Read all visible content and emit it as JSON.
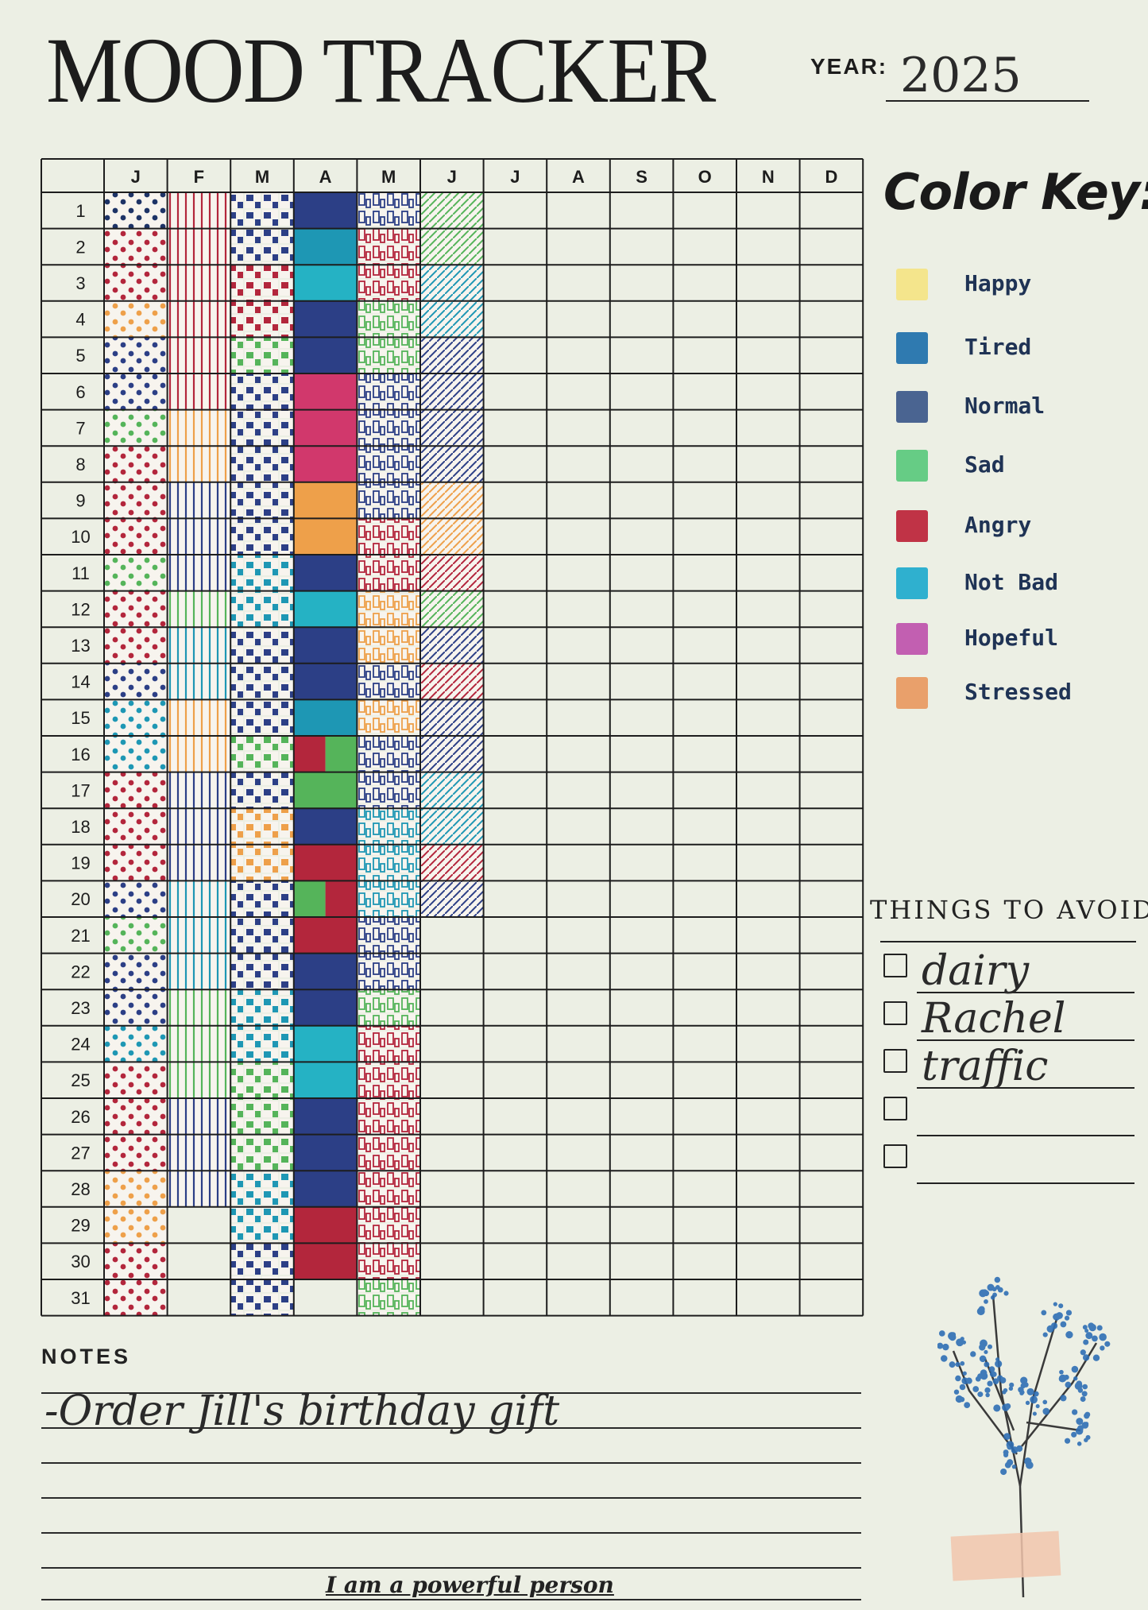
{
  "header": {
    "title": "MOOD TRACKER",
    "year_label": "YEAR:",
    "year_value": "2025"
  },
  "tracker": {
    "months": [
      "J",
      "F",
      "M",
      "A",
      "M",
      "J",
      "J",
      "A",
      "S",
      "O",
      "N",
      "D"
    ],
    "days": [
      "1",
      "2",
      "3",
      "4",
      "5",
      "6",
      "7",
      "8",
      "9",
      "10",
      "11",
      "12",
      "13",
      "14",
      "15",
      "16",
      "17",
      "18",
      "19",
      "20",
      "21",
      "22",
      "23",
      "24",
      "25",
      "26",
      "27",
      "28",
      "29",
      "30",
      "31"
    ],
    "patterns": [
      "dots",
      "vertical-lines",
      "squares",
      "solid",
      "rectangles",
      "diagonal-lines"
    ],
    "filled": [
      [
        "happy_or_misc:navy",
        "angry",
        "normal",
        "normal",
        "normal",
        "sad"
      ],
      [
        "angry",
        "angry",
        "normal",
        "tired",
        "angry",
        "sad"
      ],
      [
        "angry",
        "angry",
        "angry",
        "notbad",
        "angry",
        "tired"
      ],
      [
        "stressed",
        "angry",
        "angry",
        "normal",
        "sad",
        "tired"
      ],
      [
        "normal",
        "angry",
        "sad",
        "normal",
        "sad",
        "normal"
      ],
      [
        "normal",
        "angry",
        "normal",
        "hopeful",
        "normal",
        "normal"
      ],
      [
        "sad",
        "stressed",
        "normal",
        "hopeful",
        "normal",
        "normal"
      ],
      [
        "angry",
        "stressed",
        "normal",
        "hopeful",
        "normal",
        "normal"
      ],
      [
        "angry",
        "normal",
        "normal",
        "stressed",
        "normal",
        "stressed"
      ],
      [
        "angry",
        "normal",
        "normal",
        "stressed",
        "angry",
        "stressed"
      ],
      [
        "sad",
        "normal",
        "tired",
        "normal",
        "angry",
        "angry"
      ],
      [
        "angry",
        "sad",
        "tired",
        "notbad",
        "stressed",
        "sad"
      ],
      [
        "angry",
        "tired",
        "normal",
        "normal",
        "stressed",
        "normal"
      ],
      [
        "normal",
        "tired",
        "normal",
        "normal",
        "normal",
        "angry"
      ],
      [
        "tired",
        "stressed",
        "normal",
        "tired",
        "stressed",
        "normal"
      ],
      [
        "tired",
        "stressed",
        "sad",
        "split:angry|sad",
        "normal",
        "normal"
      ],
      [
        "angry",
        "normal",
        "normal",
        "sad",
        "normal",
        "tired"
      ],
      [
        "angry",
        "normal",
        "stressed",
        "normal",
        "tired",
        "tired"
      ],
      [
        "angry",
        "normal",
        "stressed",
        "angry",
        "tired",
        "angry"
      ],
      [
        "normal",
        "tired",
        "normal",
        "split:sad|angry",
        "tired",
        "normal"
      ],
      [
        "sad",
        "tired",
        "normal",
        "angry",
        "normal",
        ""
      ],
      [
        "normal",
        "tired",
        "normal",
        "normal",
        "normal",
        ""
      ],
      [
        "normal",
        "sad",
        "tired",
        "normal",
        "sad",
        ""
      ],
      [
        "tired",
        "sad",
        "tired",
        "notbad",
        "angry",
        ""
      ],
      [
        "angry",
        "sad",
        "sad",
        "notbad",
        "angry",
        ""
      ],
      [
        "angry",
        "normal",
        "sad",
        "normal",
        "angry",
        ""
      ],
      [
        "angry",
        "normal",
        "sad",
        "normal",
        "angry",
        ""
      ],
      [
        "stressed",
        "normal",
        "tired",
        "normal",
        "angry",
        ""
      ],
      [
        "stressed",
        "",
        "tired",
        "angry",
        "angry",
        ""
      ],
      [
        "angry",
        "",
        "normal",
        "angry",
        "angry",
        ""
      ],
      [
        "angry",
        "",
        "normal",
        "",
        "sad",
        ""
      ]
    ]
  },
  "color_key": {
    "title": "Color Key:",
    "items": [
      {
        "label": "Happy",
        "color": "#f4e58c"
      },
      {
        "label": "Tired",
        "color": "#2f7ab0"
      },
      {
        "label": "Normal",
        "color": "#4a6491"
      },
      {
        "label": "Sad",
        "color": "#66cc85"
      },
      {
        "label": "Angry",
        "color": "#c03346"
      },
      {
        "label": "Not Bad",
        "color": "#2fb0cf"
      },
      {
        "label": "Hopeful",
        "color": "#c25fb1"
      },
      {
        "label": "Stressed",
        "color": "#e9a06b"
      }
    ]
  },
  "things_to_avoid": {
    "title": "THINGS TO AVOID",
    "items": [
      "dairy",
      "Rachel",
      "traffic",
      "",
      ""
    ]
  },
  "notes": {
    "label": "NOTES",
    "entries": [
      "-Order Jill's birthday gift"
    ]
  },
  "footer": {
    "affirmation": "I am a powerful person"
  },
  "mood_colors": {
    "navy": "#1d3366",
    "angry": "#b3263c",
    "normal": "#2c3f86",
    "tired": "#1e97b4",
    "sad": "#55b45a",
    "stressed": "#eea04a",
    "notbad": "#25b2c4",
    "hopeful": "#d1386c",
    "happy_or_misc": "#1d3366"
  }
}
